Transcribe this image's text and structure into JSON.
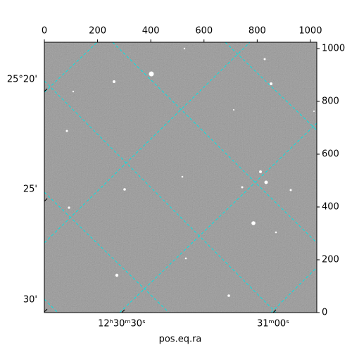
{
  "chart_data": {
    "type": "image",
    "xlim": [
      0,
      1024
    ],
    "ylim": [
      0,
      1024
    ],
    "xticks": [
      0,
      200,
      400,
      600,
      800,
      1000
    ],
    "yticks": [
      0,
      200,
      400,
      600,
      800,
      1000
    ],
    "dec_tick_labels": [
      "25°20'",
      "25'",
      "30'"
    ],
    "ra_tick_labels": [
      "12ʰ30ᵐ30ˢ",
      "31ᵐ00ˢ"
    ],
    "xlabel": "pos.eq.ra",
    "grid": true,
    "grid_color": "#00e5e5"
  }
}
